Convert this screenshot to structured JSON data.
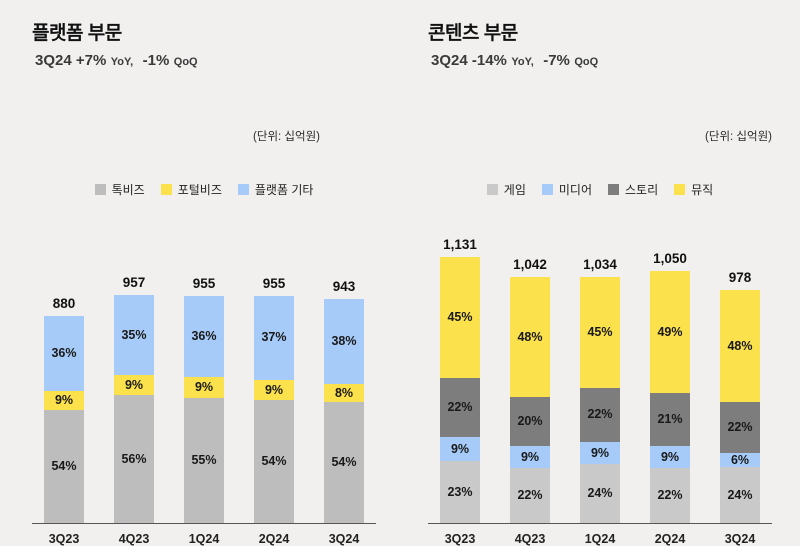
{
  "page": {
    "background_color": "#f1f0ee"
  },
  "chart_data": [
    {
      "type": "bar",
      "stacked": true,
      "title": "플랫폼 부문",
      "subtitle": {
        "v1": "3Q24 +7%",
        "l1": "YoY,",
        "v2": "-1%",
        "l2": "QoQ"
      },
      "unit_note": "(단위: 십억원)",
      "categories": [
        "3Q23",
        "4Q23",
        "1Q24",
        "2Q24",
        "3Q24"
      ],
      "totals": [
        880,
        957,
        955,
        955,
        943
      ],
      "series": [
        {
          "name": "톡비즈",
          "color": "#bdbdbd",
          "percents": [
            54,
            56,
            55,
            54,
            54
          ]
        },
        {
          "name": "포털비즈",
          "color": "#fbe14b",
          "percents": [
            9,
            9,
            9,
            9,
            8
          ]
        },
        {
          "name": "플랫폼 기타",
          "color": "#a6cbf8",
          "percents": [
            36,
            35,
            36,
            37,
            38
          ]
        }
      ],
      "ymax": 1260,
      "ylabel": "",
      "xlabel": "",
      "legend_position": "top",
      "grid": false,
      "value_unit": "%"
    },
    {
      "type": "bar",
      "stacked": true,
      "title": "콘텐츠 부문",
      "subtitle": {
        "v1": "3Q24 -14%",
        "l1": "YoY,",
        "v2": "-7%",
        "l2": "QoQ"
      },
      "unit_note": "(단위: 십억원)",
      "categories": [
        "3Q23",
        "4Q23",
        "1Q24",
        "2Q24",
        "3Q24"
      ],
      "totals": [
        1131,
        1042,
        1034,
        1050,
        978
      ],
      "series": [
        {
          "name": "게임",
          "color": "#c9c9c9",
          "percents": [
            23,
            22,
            24,
            22,
            24
          ]
        },
        {
          "name": "미디어",
          "color": "#a6cbf8",
          "percents": [
            9,
            9,
            9,
            9,
            6
          ]
        },
        {
          "name": "스토리",
          "color": "#7d7d7d",
          "percents": [
            22,
            20,
            22,
            21,
            22
          ]
        },
        {
          "name": "뮤직",
          "color": "#fbe14b",
          "percents": [
            45,
            48,
            45,
            49,
            48
          ]
        }
      ],
      "ymax": 1260,
      "ylabel": "",
      "xlabel": "",
      "legend_position": "top",
      "grid": false,
      "value_unit": "%"
    }
  ]
}
